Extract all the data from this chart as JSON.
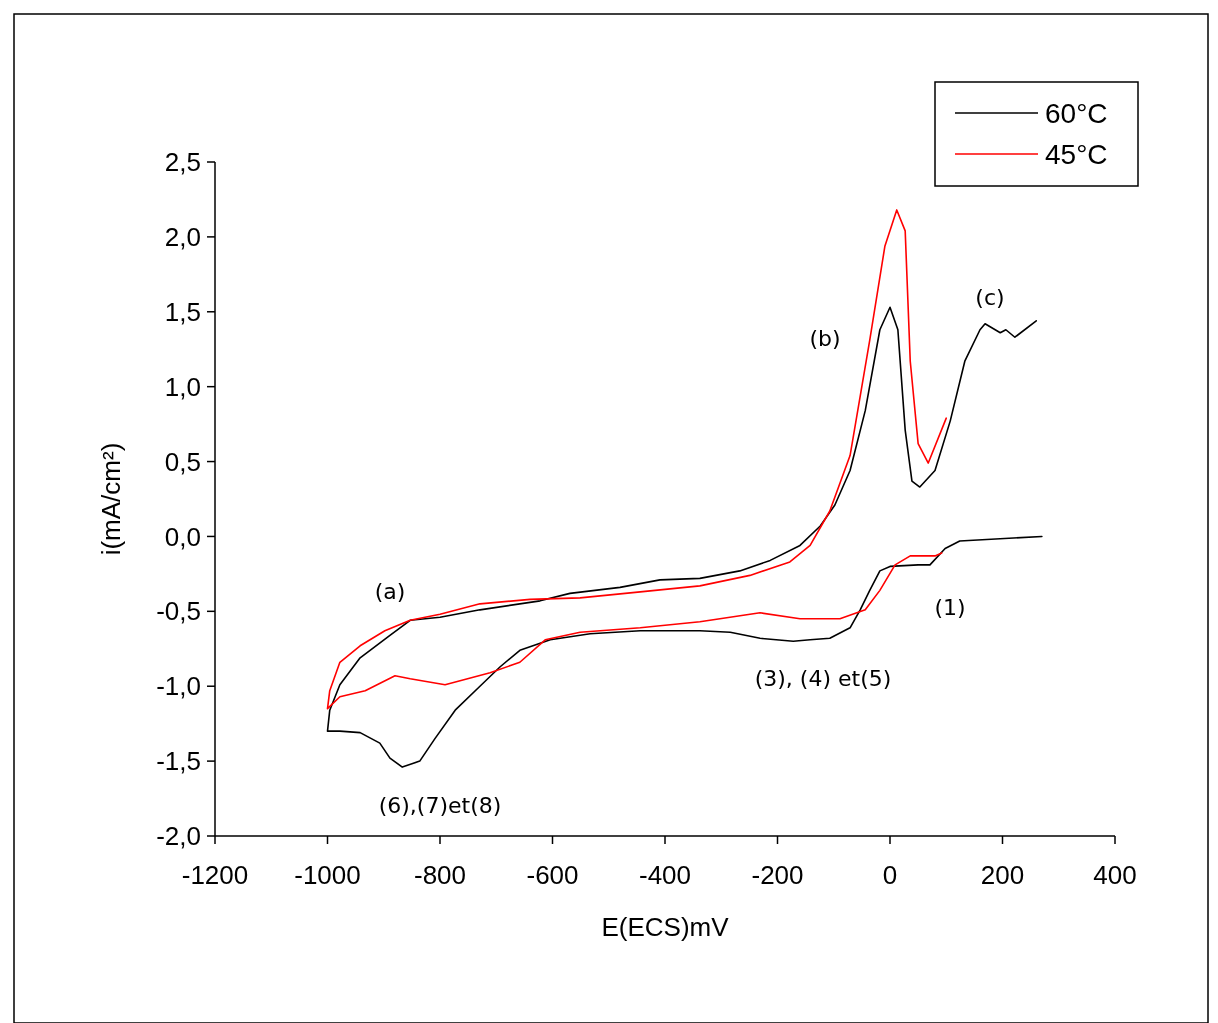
{
  "chart_data": {
    "type": "line",
    "xlabel": "E(ECS)mV",
    "ylabel": "i(mA/cm²)",
    "xlim": [
      -1200,
      400
    ],
    "xticks": [
      -1200,
      -1000,
      -800,
      -600,
      -400,
      -200,
      0,
      200,
      400
    ],
    "ylim": [
      -2.0,
      2.5
    ],
    "yticks": [
      {
        "value": -2.0,
        "label": "-2,0"
      },
      {
        "value": -1.5,
        "label": "-1,5"
      },
      {
        "value": -1.0,
        "label": "-1,0"
      },
      {
        "value": -0.5,
        "label": "-0,5"
      },
      {
        "value": 0.0,
        "label": "0,0"
      },
      {
        "value": 0.5,
        "label": "0,5"
      },
      {
        "value": 1.0,
        "label": "1,0"
      },
      {
        "value": 1.5,
        "label": "1,5"
      },
      {
        "value": 2.0,
        "label": "2,0"
      },
      {
        "value": 2.5,
        "label": "2,5"
      }
    ],
    "grid": false,
    "legend": "top right",
    "marker": "none",
    "line_style": "solid",
    "series": [
      {
        "name": "60°C",
        "color": "#000000",
        "x": [
          270,
          124,
          98,
          71,
          50,
          0,
          -18,
          -36,
          -53,
          -71,
          -107,
          -142,
          -172,
          -231,
          -284,
          -338,
          -444,
          -533,
          -604,
          -658,
          -693,
          -729,
          -773,
          -809,
          -836,
          -867,
          -889,
          -907,
          -942,
          -978,
          -1000,
          -996,
          -978,
          -942,
          -889,
          -853,
          -800,
          -729,
          -622,
          -569,
          -480,
          -409,
          -338,
          -267,
          -213,
          -160,
          -124,
          -98,
          -71,
          -44,
          -18,
          0,
          14,
          27,
          39,
          53,
          80,
          107,
          133,
          160,
          169,
          196,
          206,
          222,
          260
        ],
        "values": [
          0.0,
          -0.03,
          -0.08,
          -0.19,
          -0.19,
          -0.2,
          -0.23,
          -0.36,
          -0.49,
          -0.61,
          -0.68,
          -0.69,
          -0.7,
          -0.68,
          -0.64,
          -0.63,
          -0.63,
          -0.65,
          -0.69,
          -0.76,
          -0.87,
          -1.0,
          -1.16,
          -1.35,
          -1.5,
          -1.54,
          -1.48,
          -1.38,
          -1.31,
          -1.3,
          -1.3,
          -1.16,
          -0.99,
          -0.81,
          -0.66,
          -0.56,
          -0.54,
          -0.49,
          -0.43,
          -0.38,
          -0.34,
          -0.29,
          -0.28,
          -0.23,
          -0.16,
          -0.06,
          0.07,
          0.21,
          0.44,
          0.84,
          1.38,
          1.53,
          1.38,
          0.71,
          0.37,
          0.33,
          0.44,
          0.77,
          1.17,
          1.38,
          1.42,
          1.36,
          1.38,
          1.33,
          1.44
        ]
      },
      {
        "name": "45°C",
        "color": "#ff0000",
        "x": [
          92,
          80,
          36,
          9,
          -18,
          -44,
          -89,
          -160,
          -231,
          -338,
          -444,
          -551,
          -613,
          -658,
          -711,
          -791,
          -853,
          -880,
          -933,
          -978,
          -1000,
          -996,
          -978,
          -942,
          -898,
          -853,
          -800,
          -729,
          -640,
          -551,
          -444,
          -338,
          -249,
          -178,
          -142,
          -107,
          -71,
          -36,
          -9,
          12,
          27,
          36,
          50,
          68,
          100
        ],
        "values": [
          -0.11,
          -0.13,
          -0.13,
          -0.19,
          -0.36,
          -0.49,
          -0.55,
          -0.55,
          -0.51,
          -0.57,
          -0.61,
          -0.64,
          -0.69,
          -0.84,
          -0.91,
          -0.99,
          -0.95,
          -0.93,
          -1.03,
          -1.07,
          -1.15,
          -1.03,
          -0.84,
          -0.73,
          -0.63,
          -0.56,
          -0.52,
          -0.45,
          -0.42,
          -0.41,
          -0.37,
          -0.33,
          -0.26,
          -0.17,
          -0.06,
          0.17,
          0.54,
          1.31,
          1.94,
          2.18,
          2.04,
          1.17,
          0.62,
          0.49,
          0.79
        ]
      }
    ],
    "annotations": [
      "(a)",
      "(b)",
      "(c)",
      "(1)",
      "(3), (4) et(5)",
      "(6),(7)et(8)"
    ]
  }
}
